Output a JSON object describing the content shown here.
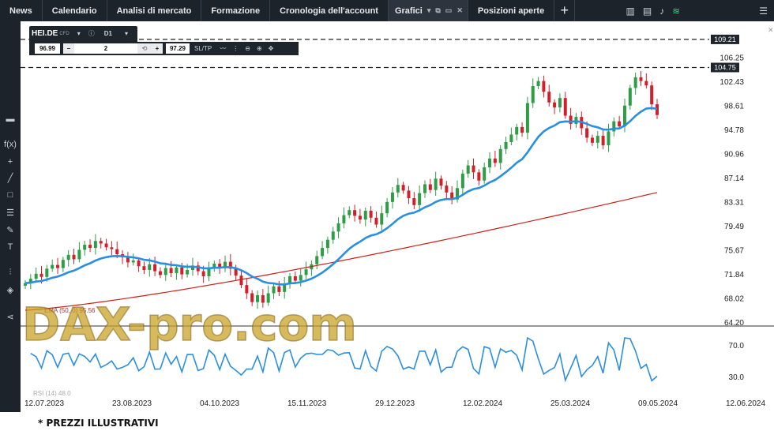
{
  "top_nav": {
    "tabs": [
      "News",
      "Calendario",
      "Analisi di mercato",
      "Formazione",
      "Cronologia dell'account"
    ],
    "active_tab": "Grafici",
    "tab_after": "Posizioni aperte",
    "add_tab": "+"
  },
  "instrument": {
    "symbol": "HEI.DE",
    "type": "CFD",
    "timeframe": "D1",
    "bid": "96.99",
    "quantity": "2",
    "ask": "97.29",
    "sltp": "SL/TP",
    "minus": "–",
    "plus": "+"
  },
  "left_toolbar": [
    "f(x)"
  ],
  "watermark": "DAX-pro.com",
  "ema_label": "EMA (50, 0) 95.56",
  "rsi_label": "RSI (14) 48.0",
  "footer_note": "* PREZZI ILLUSTRATIVI",
  "colors": {
    "up": "#2e9d45",
    "down": "#d2202a",
    "ema_fast": "#2a8fe0",
    "ema_slow": "#c8231c",
    "rsi": "#2a8fe0",
    "watermark": "#c8a020"
  },
  "chart_data": {
    "type": "candlestick",
    "price_axis": {
      "ticks": [
        "106.25",
        "102.43",
        "98.61",
        "94.78",
        "90.96",
        "87.14",
        "83.31",
        "79.49",
        "75.67",
        "71.84",
        "68.02",
        "64.20"
      ],
      "levels": [
        {
          "value": 109.21,
          "label": "109.21"
        },
        {
          "value": 104.75,
          "label": "104.75"
        }
      ],
      "range": [
        64.2,
        109.21
      ]
    },
    "rsi_axis": {
      "ticks": [
        "70.0",
        "30.0"
      ],
      "range": [
        15,
        85
      ]
    },
    "x_ticks": [
      "12.07.2023",
      "23.08.2023",
      "04.10.2023",
      "15.11.2023",
      "29.12.2023",
      "12.02.2024",
      "25.03.2024",
      "09.05.2024",
      "12.06.2024"
    ],
    "close_series": [
      70.5,
      71.2,
      72.0,
      71.5,
      72.8,
      73.4,
      72.9,
      74.2,
      75.0,
      74.3,
      75.8,
      76.6,
      76.1,
      77.2,
      76.8,
      76.2,
      75.9,
      75.1,
      74.6,
      73.8,
      74.1,
      73.2,
      72.6,
      73.5,
      72.4,
      71.8,
      72.9,
      72.1,
      73.0,
      71.9,
      72.6,
      73.3,
      72.4,
      71.6,
      72.8,
      73.6,
      72.9,
      73.9,
      72.8,
      71.7,
      70.2,
      68.9,
      67.5,
      68.6,
      67.4,
      68.9,
      70.0,
      69.1,
      70.4,
      71.6,
      70.9,
      71.8,
      72.7,
      73.5,
      74.8,
      76.1,
      77.4,
      78.7,
      80.0,
      81.3,
      82.1,
      81.2,
      80.6,
      82.0,
      80.9,
      79.8,
      81.6,
      83.4,
      84.9,
      86.1,
      85.2,
      84.0,
      82.9,
      84.8,
      86.2,
      85.3,
      87.1,
      86.0,
      84.9,
      83.8,
      85.6,
      87.9,
      89.2,
      88.1,
      86.8,
      88.9,
      90.3,
      89.6,
      91.8,
      92.9,
      94.1,
      95.3,
      94.4,
      99.1,
      101.8,
      102.6,
      100.9,
      99.2,
      98.4,
      99.9,
      97.1,
      95.8,
      96.9,
      95.1,
      93.6,
      92.8,
      93.9,
      92.4,
      94.6,
      96.2,
      95.4,
      98.7,
      101.5,
      103.2,
      102.6,
      101.9,
      98.9,
      97.2
    ]
  }
}
